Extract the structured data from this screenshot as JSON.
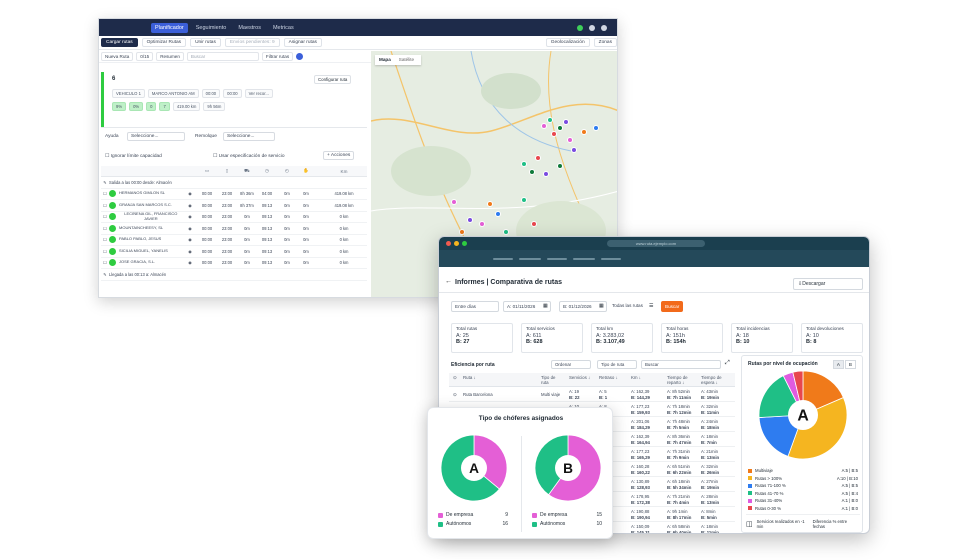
{
  "planner": {
    "nav": {
      "items": [
        "Planificador",
        "Seguimiento",
        "Maestros",
        "Metricas"
      ],
      "active": 0
    },
    "toolbar": [
      "Cargar rutas",
      "Optimizar Rutas",
      "Unir rutas",
      "Envíos pendientes: 9",
      "Asignar rutas",
      "Geolocalización",
      "Zonas"
    ],
    "subtoolbar": {
      "nueva_ruta": "Nueva Ruta",
      "count": "0/15",
      "resumen": "Resumen",
      "buscar_placeholder": "Buscar",
      "filtrar": "Filtrar rutas"
    },
    "route": {
      "number": "6",
      "configurar": "Configurar ruta",
      "vehiculo": "VEHICULO 1",
      "driver": "MARCO ANTONIO AM",
      "start": "00:00",
      "end": "00:00",
      "ver": "Ver recor...",
      "pct1": "9%",
      "pct2": "0%",
      "n1": "0",
      "n2": "7",
      "dist": "419.00 km",
      "hours": "9h 56m"
    },
    "panel": {
      "ayuda": "Ayuda",
      "seleccione1": "Seleccione...",
      "remolque": "Remolque",
      "seleccione2": "Seleccione...",
      "ignorar": "Ignorar límite capacidad",
      "usar": "Usar especificación de servicio",
      "acciones": "+ Acciones"
    },
    "table_header_km": "Km",
    "salida": "Salida a las 00:00 desde: Almacén",
    "llegada": "Llegada a las 00:13 a: Almacén",
    "rows": [
      {
        "name": "HERMANOS GIMLON SL",
        "a": "00:00",
        "b": "23:00",
        "c": "8h 36m",
        "d": "04:00",
        "e": "0m",
        "f": "0m",
        "km": "419.08 km"
      },
      {
        "name": "GRANJA SAN MARCOS S.C.",
        "a": "00:00",
        "b": "23:00",
        "c": "8h 37m",
        "d": "09:13",
        "e": "0m",
        "f": "0m",
        "km": "419.08 km"
      },
      {
        "name": "LECIÑENA GIL, FRANCISCO JAVIER",
        "a": "00:00",
        "b": "23:00",
        "c": "0m",
        "d": "09:13",
        "e": "0m",
        "f": "0m",
        "km": "0 km"
      },
      {
        "name": "MOUNTAINCHEESY, SL",
        "a": "00:00",
        "b": "23:00",
        "c": "0m",
        "d": "09:13",
        "e": "0m",
        "f": "0m",
        "km": "0 km"
      },
      {
        "name": "PABLO PABLO, JESUS",
        "a": "00:00",
        "b": "23:00",
        "c": "0m",
        "d": "09:13",
        "e": "0m",
        "f": "0m",
        "km": "0 km"
      },
      {
        "name": "SICILIA MIGUEL, YANELIS",
        "a": "00:00",
        "b": "23:00",
        "c": "0m",
        "d": "09:13",
        "e": "0m",
        "f": "0m",
        "km": "0 km"
      },
      {
        "name": "JOSE GRACIA, S.L.",
        "a": "00:00",
        "b": "23:00",
        "c": "0m",
        "d": "09:13",
        "e": "0m",
        "f": "0m",
        "km": "0 km"
      }
    ],
    "map": {
      "tab_mapa": "Mapa",
      "tab_satelite": "Satélite"
    }
  },
  "reports": {
    "url": "www.ruta.ejemplo.com",
    "title": "Informes | Comparativa de rutas",
    "download": "Descargar",
    "filters": {
      "entre": "Entre días",
      "a_date": "A: 01/11/2026",
      "b_date": "B: 01/12/2026",
      "todas": "Todas las rutas",
      "buscar": "Buscar"
    },
    "kpis": [
      {
        "label": "Total rutas",
        "a": "A: 25",
        "b": "B: 27"
      },
      {
        "label": "Total servicios",
        "a": "A: 611",
        "b": "B: 628"
      },
      {
        "label": "Total km",
        "a": "A: 3.283,02",
        "b": "B: 3.107,49"
      },
      {
        "label": "Total horas",
        "a": "A: 151h",
        "b": "B: 154h"
      },
      {
        "label": "Total incidencias",
        "a": "A: 18",
        "b": "B: 10"
      },
      {
        "label": "Total devoluciones",
        "a": "A: 10",
        "b": "B: 8"
      }
    ],
    "efficiency": {
      "title": "Eficiencia por ruta",
      "ordenar": "Ordenar",
      "tipo": "Tipo de ruta",
      "buscar": "Buscar",
      "headers": [
        "Ruta ↓",
        "Tipo de ruta",
        "Servicios ↓",
        "Retraso ↓",
        "Km ↓",
        "Tiempo de reparto ↓",
        "Tiempo de espera ↓"
      ],
      "rows": [
        {
          "ruta": "Ruta Barcelona",
          "tipo": "Multi viaje",
          "srv_a": "A: 19",
          "srv_b": "B: 22",
          "ret_a": "A: 5",
          "ret_b": "B: 1",
          "km_a": "A: 162,39",
          "km_b": "B: 144,29",
          "rep_a": "A: 8h 52min",
          "rep_b": "B: 7h 11min",
          "esp_a": "A: 43min",
          "esp_b": "B: 19min"
        },
        {
          "ruta": "Ruta Badalona",
          "tipo": "Simple",
          "srv_a": "A: 10",
          "srv_b": "B: 12",
          "ret_a": "A: 8",
          "ret_b": "B: 3",
          "km_a": "A: 177,23",
          "km_b": "B: 159,93",
          "rep_a": "A: 7h 18min",
          "rep_b": "B: 7h 12min",
          "esp_a": "A: 32min",
          "esp_b": "B: 11min"
        },
        {
          "ruta": "Ruta Sabadell",
          "tipo": "Simple",
          "srv_a": "A: 14",
          "srv_b": "B: 16",
          "ret_a": "A: 2",
          "ret_b": "B: 4",
          "km_a": "A: 201,06",
          "km_b": "B: 184,29",
          "rep_a": "A: 7h 48min",
          "rep_b": "B: 7h 5min",
          "esp_a": "A: 24min",
          "esp_b": "B: 18min"
        },
        {
          "ruta": "Ruta Terrassa",
          "tipo": "Simple",
          "srv_a": "A: 12",
          "srv_b": "B: 11",
          "ret_a": "A: 1",
          "ret_b": "B: 0",
          "km_a": "A: 162,39",
          "km_b": "B: 164,94",
          "rep_a": "A: 8h 36min",
          "rep_b": "B: 7h 47min",
          "esp_a": "A: 18min",
          "esp_b": "B: 7min"
        },
        {
          "ruta": "Ruta Mataró",
          "tipo": "Simple",
          "srv_a": "A: 9",
          "srv_b": "B: 10",
          "ret_a": "A: 3",
          "ret_b": "B: 2",
          "km_a": "A: 177,23",
          "km_b": "B: 165,29",
          "rep_a": "A: 7h 31min",
          "rep_b": "B: 7h 9min",
          "esp_a": "A: 21min",
          "esp_b": "B: 13min"
        },
        {
          "ruta": "Ruta Reus",
          "tipo": "Simple",
          "srv_a": "A: 15",
          "srv_b": "B: 14",
          "ret_a": "A: 4",
          "ret_b": "B: 1",
          "km_a": "A: 160,28",
          "km_b": "B: 160,22",
          "rep_a": "A: 6h 51min",
          "rep_b": "B: 6h 22min",
          "esp_a": "A: 32min",
          "esp_b": "B: 26min"
        },
        {
          "ruta": "Ruta Lleida",
          "tipo": "Simple",
          "srv_a": "A: 11",
          "srv_b": "B: 13",
          "ret_a": "A: 6",
          "ret_b": "B: 2",
          "km_a": "A: 130,89",
          "km_b": "B: 128,93",
          "rep_a": "A: 6h 18min",
          "rep_b": "B: 5h 34min",
          "esp_a": "A: 27min",
          "esp_b": "B: 19min"
        },
        {
          "ruta": "Ruta Girona",
          "tipo": "Simple",
          "srv_a": "A: 8",
          "srv_b": "B: 9",
          "ret_a": "A: 2",
          "ret_b": "B: 1",
          "km_a": "A: 178,95",
          "km_b": "B: 172,38",
          "rep_a": "A: 7h 21min",
          "rep_b": "B: 7h 4min",
          "esp_a": "A: 28min",
          "esp_b": "B: 13min"
        },
        {
          "ruta": "Ruta Manresa",
          "tipo": "Simple",
          "srv_a": "A: 13",
          "srv_b": "B: 12",
          "ret_a": "A: 3",
          "ret_b": "B: 1",
          "km_a": "A: 190,88",
          "km_b": "B: 190,94",
          "rep_a": "A: 9h 1min",
          "rep_b": "B: 8h 17min",
          "esp_a": "A: 8min",
          "esp_b": "B: 5min"
        },
        {
          "ruta": "Ruta Vic",
          "tipo": "Simple",
          "srv_a": "A: 10",
          "srv_b": "B: 11",
          "ret_a": "A: 2",
          "ret_b": "B: 0",
          "km_a": "A: 150,09",
          "km_b": "B: 145,31",
          "rep_a": "A: 6h 58min",
          "rep_b": "B: 6h 40min",
          "esp_a": "A: 18min",
          "esp_b": "B: 11min"
        }
      ]
    },
    "occupancy": {
      "title": "Rutas por nivel de ocupación",
      "toggle_a": "A",
      "toggle_b": "B",
      "center": "A",
      "legend": [
        {
          "label": "Multiviaje",
          "value": "A:5 | B:5",
          "color": "#f07a1a",
          "share": 5
        },
        {
          "label": "Rutas > 100%",
          "value": "A:10 | B:10",
          "color": "#f5b520",
          "share": 10
        },
        {
          "label": "Rutas 71-100 %",
          "value": "A:5 | B:5",
          "color": "#2e7cf0",
          "share": 5
        },
        {
          "label": "Rutas 41-70 %",
          "value": "A:5 | B:4",
          "color": "#1fbf86",
          "share": 5
        },
        {
          "label": "Rutas 31-40%",
          "value": "A:1 | B:0",
          "color": "#e05be0",
          "share": 1
        },
        {
          "label": "Rutas 0-30 %",
          "value": "A:1 | B:0",
          "color": "#e8474e",
          "share": 1
        }
      ],
      "foot_services": "Servicios realizados en -1 min",
      "foot_diff": "Diferencia % entre fechas"
    }
  },
  "drivers": {
    "title": "Tipo de chóferes asignados",
    "charts": [
      {
        "center": "A",
        "items": [
          {
            "label": "De empresa",
            "value": 9,
            "color": "#e45fd6"
          },
          {
            "label": "Autónomos",
            "value": 16,
            "color": "#1fbf86"
          }
        ]
      },
      {
        "center": "B",
        "items": [
          {
            "label": "De empresa",
            "value": 15,
            "color": "#e45fd6"
          },
          {
            "label": "Autónomos",
            "value": 10,
            "color": "#1fbf86"
          }
        ]
      }
    ]
  },
  "chart_data": [
    {
      "type": "pie",
      "title": "Rutas por nivel de ocupación",
      "categories": [
        "Multiviaje",
        "Rutas > 100%",
        "Rutas 71-100 %",
        "Rutas 41-70 %",
        "Rutas 31-40%",
        "Rutas 0-30 %"
      ],
      "series": [
        {
          "name": "A",
          "values": [
            5,
            10,
            5,
            5,
            1,
            1
          ]
        },
        {
          "name": "B",
          "values": [
            5,
            10,
            5,
            4,
            0,
            0
          ]
        }
      ]
    },
    {
      "type": "pie",
      "title": "Tipo de chóferes asignados",
      "categories": [
        "De empresa",
        "Autónomos"
      ],
      "series": [
        {
          "name": "A",
          "values": [
            9,
            16
          ]
        },
        {
          "name": "B",
          "values": [
            15,
            10
          ]
        }
      ]
    }
  ]
}
